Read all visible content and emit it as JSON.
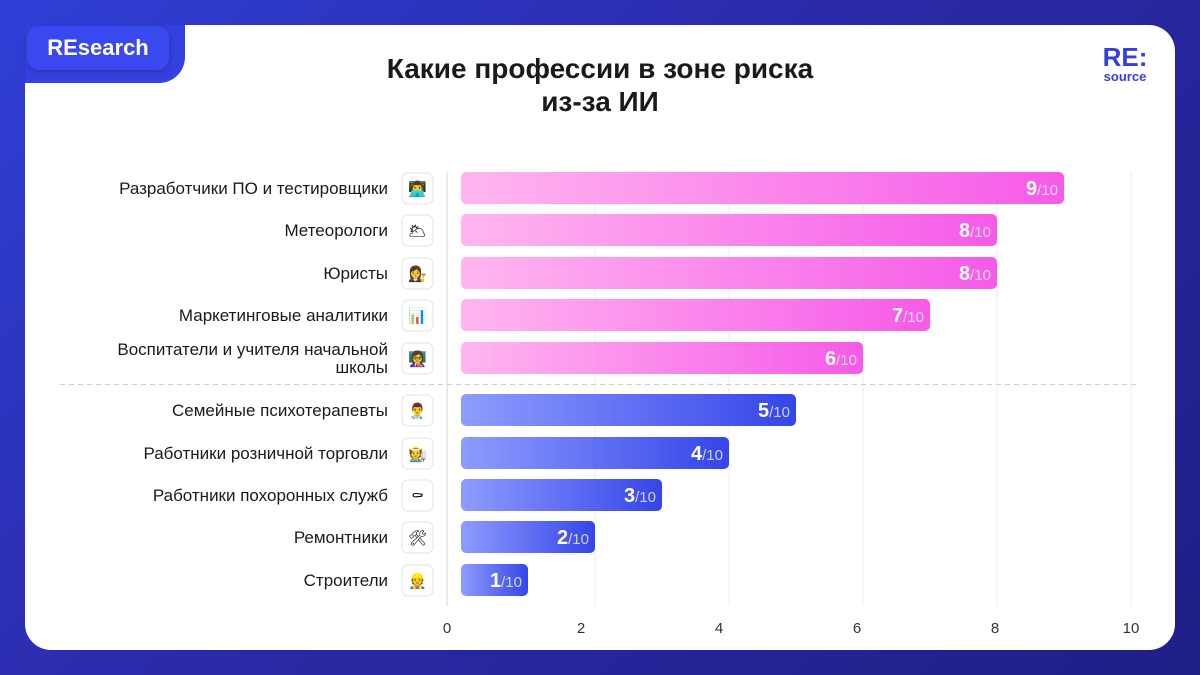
{
  "brand": {
    "label": "REsearch"
  },
  "logo": {
    "line1": "RE:",
    "line2": "source"
  },
  "title": {
    "line1": "Какие профессии в зоне риска",
    "line2": "из-за ИИ"
  },
  "colors": {
    "high_start": "#ffb6f0",
    "high_end": "#f65ae8",
    "low_start": "#8e9cff",
    "low_end": "#3545e8",
    "background": "#2a2aa8",
    "accent": "#3540e0"
  },
  "chart_data": {
    "type": "bar",
    "orientation": "horizontal",
    "title": "Какие профессии в зоне риска из-за ИИ",
    "categories": [
      "Разработчики ПО и тестировщики",
      "Метеорологи",
      "Юристы",
      "Маркетинговые аналитики",
      "Воспитатели и учителя начальной школы",
      "Семейные психотерапевты",
      "Работники розничной торговли",
      "Работники похоронных служб",
      "Ремонтники",
      "Строители"
    ],
    "label_lines": [
      [
        "Разработчики ПО и тестировщики"
      ],
      [
        "Метеорологи"
      ],
      [
        "Юристы"
      ],
      [
        "Маркетинговые аналитики"
      ],
      [
        "Воспитатели и учителя начальной",
        "школы"
      ],
      [
        "Семейные психотерапевты"
      ],
      [
        "Работники розничной торговли"
      ],
      [
        "Работники похоронных служб"
      ],
      [
        "Ремонтники"
      ],
      [
        "Строители"
      ]
    ],
    "icons": [
      "technologist-icon",
      "sun-behind-cloud-icon",
      "judge-icon",
      "bar-chart-icon",
      "teacher-icon",
      "health-worker-icon",
      "farmer-icon",
      "coffin-icon",
      "hammer-and-wrench-icon",
      "construction-worker-icon"
    ],
    "icon_glyphs": [
      "👨‍💻",
      "🌥",
      "👩‍⚖️",
      "📊",
      "👩‍🏫",
      "👨‍⚕️",
      "🧑‍🌾",
      "⚰",
      "🛠",
      "👷"
    ],
    "values": [
      9,
      8,
      8,
      7,
      6,
      5,
      4,
      3,
      2,
      1
    ],
    "value_suffix": "/10",
    "xlim": [
      0,
      10
    ],
    "xticks": [
      0,
      2,
      4,
      6,
      8,
      10
    ],
    "grid": true,
    "separator_after_index": 4,
    "xlabel": "",
    "ylabel": ""
  }
}
